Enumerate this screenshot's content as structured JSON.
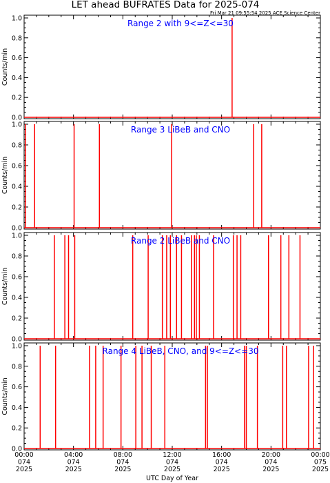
{
  "title": "LET ahead BUFRATES Data for 2025-074",
  "timestamp": "Fri Mar 21 09:55:54 2025 ACE Science Center",
  "xlabel": "UTC Day of Year",
  "colors": {
    "data": "#ff0000",
    "label": "#0000ff",
    "axis": "#000000"
  },
  "chart_data": [
    {
      "type": "line",
      "label": "Range 2 with 9<=Z<=30",
      "ylabel": "Counts/min",
      "ylim": [
        0,
        1.0
      ],
      "yticks": [
        "0.0",
        "0.2",
        "0.4",
        "0.6",
        "0.8",
        "1.0"
      ],
      "xlim": [
        0,
        24
      ],
      "spikes_hours": [
        16.85
      ]
    },
    {
      "type": "line",
      "label": "Range 3 LiBeB and CNO",
      "ylabel": "Counts/min",
      "ylim": [
        0,
        1.0
      ],
      "yticks": [
        "0.0",
        "0.2",
        "0.4",
        "0.6",
        "0.8",
        "1.0"
      ],
      "xlim": [
        0,
        24
      ],
      "spikes_hours": [
        0.1,
        0.85,
        4.05,
        6.1,
        11.95,
        18.6,
        19.25
      ]
    },
    {
      "type": "line",
      "label": "Range 2 LiBeB and CNO",
      "ylabel": "Counts/min",
      "ylim": [
        0,
        1.0
      ],
      "yticks": [
        "0.0",
        "0.2",
        "0.4",
        "0.6",
        "0.8",
        "1.0"
      ],
      "xlim": [
        0,
        24
      ],
      "spikes_hours": [
        2.45,
        3.3,
        3.6,
        4.1,
        8.8,
        10.05,
        11.2,
        11.55,
        11.85,
        12.35,
        12.75,
        13.55,
        13.8,
        13.95,
        14.2,
        15.35,
        16.95,
        17.25,
        17.55,
        19.8,
        20.8,
        21.45,
        22.35
      ]
    },
    {
      "type": "line",
      "label": "Range 4 LiBeB, CNO, and 9<=Z<=30",
      "ylabel": "Counts/min",
      "ylim": [
        0,
        1.0
      ],
      "yticks": [
        "0.0",
        "0.2",
        "0.4",
        "0.6",
        "0.8",
        "1.0"
      ],
      "xlim": [
        0,
        24
      ],
      "spikes_hours": [
        1.3,
        2.55,
        5.3,
        5.8,
        6.4,
        7.85,
        9.05,
        9.55,
        10.3,
        11.4,
        14.7,
        14.85,
        17.85,
        18.0,
        18.9,
        20.95,
        21.25,
        23.05,
        23.45
      ]
    }
  ],
  "x_ticks": [
    {
      "time": "00:00",
      "doy": "074",
      "year": "2025"
    },
    {
      "time": "04:00",
      "doy": "074",
      "year": "2025"
    },
    {
      "time": "08:00",
      "doy": "074",
      "year": "2025"
    },
    {
      "time": "12:00",
      "doy": "074",
      "year": "2025"
    },
    {
      "time": "16:00",
      "doy": "074",
      "year": "2025"
    },
    {
      "time": "20:00",
      "doy": "074",
      "year": "2025"
    },
    {
      "time": "00:00",
      "doy": "075",
      "year": "2025"
    }
  ]
}
